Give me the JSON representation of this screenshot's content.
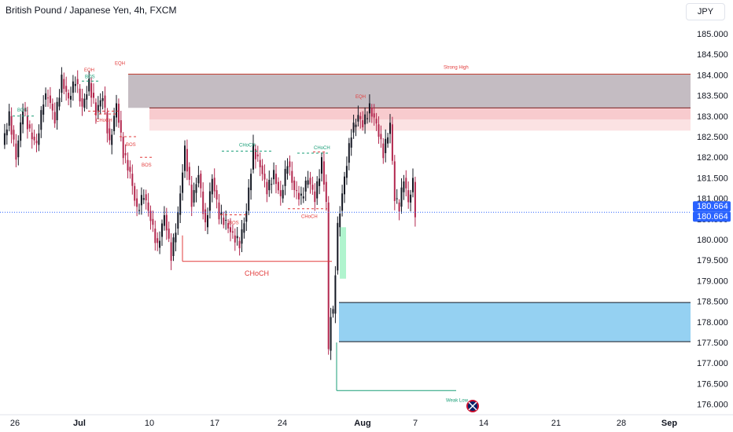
{
  "header": {
    "title": "British Pound / Japanese Yen, 4h, FXCM",
    "currency_button": "JPY"
  },
  "colors": {
    "bull": "#131722",
    "bear": "#b2274e",
    "premium_zone": "#b0a5ad",
    "supply_zone": "#f6b9bd",
    "demand_zone": "#8fcff1",
    "fvg_green": "#a7f3c9",
    "bos_red": "#e23c3c",
    "choch_green": "#189e77",
    "price_line": "#2962ff"
  },
  "chart_data": {
    "type": "candlestick",
    "symbol": "British Pound / Japanese Yen",
    "timeframe": "4h",
    "source": "FXCM",
    "y_ticks": [
      "185.000",
      "184.500",
      "184.000",
      "183.500",
      "183.000",
      "182.500",
      "182.000",
      "181.500",
      "181.000",
      "180.500",
      "180.000",
      "179.500",
      "179.000",
      "178.500",
      "178.000",
      "177.500",
      "177.000",
      "176.500",
      "176.000"
    ],
    "x_ticks": [
      {
        "label": "26",
        "bold": false
      },
      {
        "label": "Jul",
        "bold": true
      },
      {
        "label": "10",
        "bold": false
      },
      {
        "label": "17",
        "bold": false
      },
      {
        "label": "24",
        "bold": false
      },
      {
        "label": "Aug",
        "bold": true
      },
      {
        "label": "7",
        "bold": false
      },
      {
        "label": "14",
        "bold": false
      },
      {
        "label": "21",
        "bold": false
      },
      {
        "label": "28",
        "bold": false
      },
      {
        "label": "Sep",
        "bold": true
      }
    ],
    "ylim": [
      175.75,
      185.35
    ],
    "last_price": "180.664",
    "last_price_value": 180.664,
    "path": [
      [
        0,
        182.3
      ],
      [
        3,
        183.0
      ],
      [
        6,
        182.0
      ],
      [
        9,
        183.2
      ],
      [
        12,
        182.6
      ],
      [
        15,
        182.3
      ],
      [
        18,
        183.4
      ],
      [
        20,
        183.5
      ],
      [
        23,
        182.9
      ],
      [
        26,
        183.9
      ],
      [
        29,
        183.4
      ],
      [
        32,
        183.9
      ],
      [
        35,
        183.2
      ],
      [
        38,
        183.8
      ],
      [
        41,
        183.1
      ],
      [
        44,
        183.5
      ],
      [
        47,
        182.3
      ],
      [
        50,
        183.3
      ],
      [
        53,
        182.1
      ],
      [
        56,
        181.6
      ],
      [
        59,
        180.7
      ],
      [
        62,
        181.1
      ],
      [
        65,
        180.5
      ],
      [
        68,
        179.8
      ],
      [
        71,
        180.6
      ],
      [
        74,
        179.6
      ],
      [
        77,
        180.6
      ],
      [
        80,
        182.2
      ],
      [
        83,
        180.9
      ],
      [
        86,
        181.6
      ],
      [
        89,
        180.3
      ],
      [
        92,
        181.5
      ],
      [
        95,
        180.6
      ],
      [
        98,
        180.4
      ],
      [
        101,
        180.1
      ],
      [
        104,
        179.9
      ],
      [
        107,
        180.7
      ],
      [
        110,
        182.2
      ],
      [
        113,
        181.8
      ],
      [
        116,
        181.2
      ],
      [
        119,
        181.6
      ],
      [
        122,
        181.0
      ],
      [
        125,
        181.9
      ],
      [
        128,
        181.2
      ],
      [
        131,
        181.0
      ],
      [
        134,
        181.5
      ],
      [
        137,
        181.0
      ],
      [
        140,
        181.9
      ],
      [
        142,
        180.9
      ],
      [
        143,
        177.3
      ],
      [
        144,
        178.2
      ],
      [
        145,
        178.2
      ],
      [
        147,
        180.3
      ],
      [
        150,
        181.5
      ],
      [
        153,
        182.6
      ],
      [
        156,
        183.0
      ],
      [
        158,
        182.8
      ],
      [
        161,
        183.2
      ],
      [
        164,
        182.8
      ],
      [
        167,
        182.1
      ],
      [
        170,
        182.8
      ],
      [
        172,
        181.0
      ],
      [
        174,
        180.8
      ],
      [
        176,
        181.5
      ],
      [
        178,
        180.9
      ],
      [
        180,
        181.4
      ],
      [
        181,
        180.66
      ]
    ],
    "annotations": {
      "bos": [
        "BOS",
        "BOS",
        "BOS",
        "BOS",
        "BOS"
      ],
      "choch": [
        "CHoCH",
        "CHoCH",
        "CHoCH",
        "CHoCH",
        "CHoCH"
      ],
      "eqh": [
        "EQH",
        "EQH",
        "EQH"
      ],
      "strong_high": "Strong High",
      "weak_low": "Weak Low"
    },
    "zones": [
      {
        "name": "premium",
        "top": 184.02,
        "bottom": 183.2
      },
      {
        "name": "supply",
        "top": 183.2,
        "bottom": 182.65
      },
      {
        "name": "demand",
        "top": 178.47,
        "bottom": 177.52
      },
      {
        "name": "fvg",
        "top": 180.3,
        "bottom": 179.05
      }
    ],
    "levels": {
      "strong_high": 184.02,
      "weak_low": 176.33,
      "choch_low": 179.47,
      "supply_top": 183.2,
      "supply_bottom": 182.65,
      "demand_top": 178.47,
      "demand_bottom": 177.52
    },
    "grid": false,
    "legend": "none"
  }
}
